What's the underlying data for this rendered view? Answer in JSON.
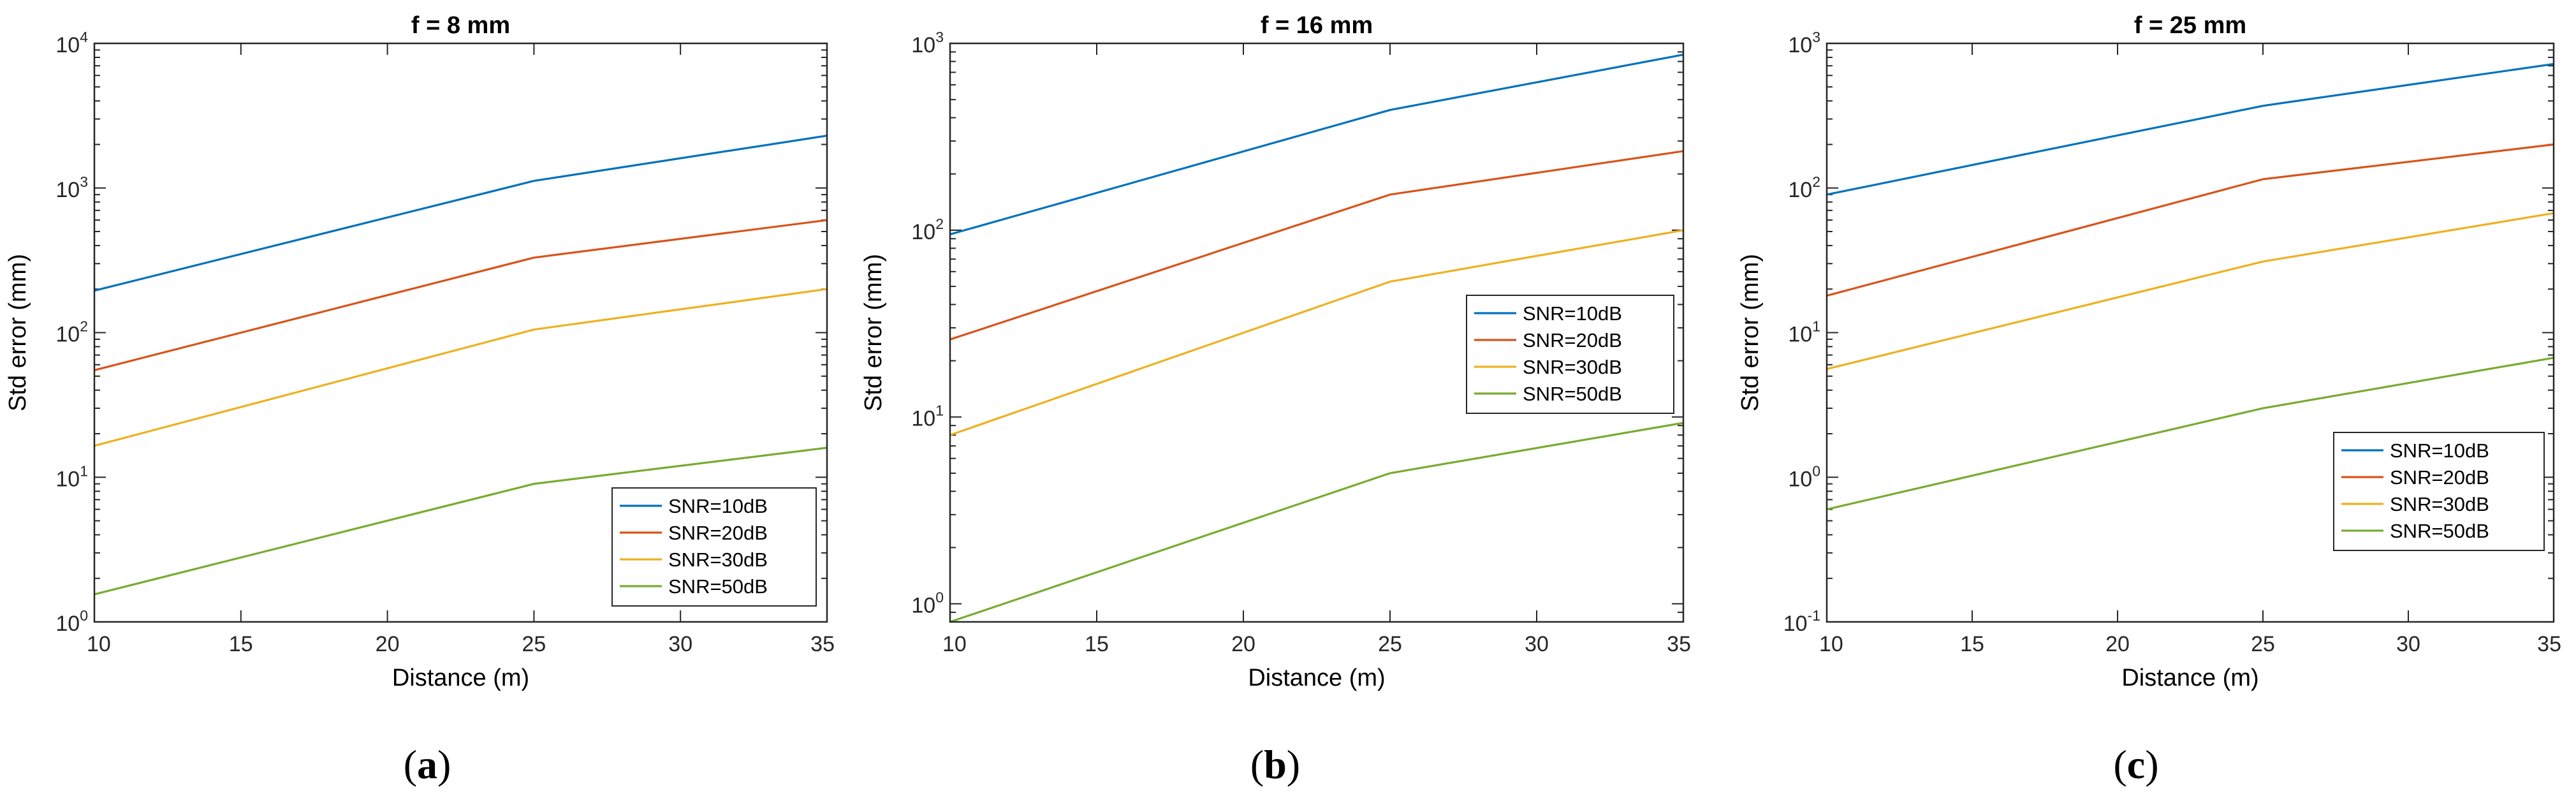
{
  "chart_data": [
    {
      "type": "line",
      "panel": "(a)",
      "panel_letter": "a",
      "title": "f = 8 mm",
      "xlabel": "Distance (m)",
      "ylabel": "Std error (mm)",
      "yscale": "log",
      "xlim": [
        10,
        35
      ],
      "ylim": [
        1,
        10000
      ],
      "xticks": [
        10,
        15,
        20,
        25,
        30,
        35
      ],
      "ytick_exponents": [
        0,
        1,
        2,
        3,
        4
      ],
      "legend_position": "bottom-right",
      "x": [
        10,
        25,
        35
      ],
      "series": [
        {
          "name": "SNR=10dB",
          "color": "#0072BD",
          "values": [
            195,
            1120,
            2300
          ]
        },
        {
          "name": "SNR=20dB",
          "color": "#D95319",
          "values": [
            55,
            330,
            600
          ]
        },
        {
          "name": "SNR=30dB",
          "color": "#EDB120",
          "values": [
            16.5,
            105,
            200
          ]
        },
        {
          "name": "SNR=50dB",
          "color": "#77AC30",
          "values": [
            1.55,
            9,
            16
          ]
        }
      ]
    },
    {
      "type": "line",
      "panel": "(b)",
      "panel_letter": "b",
      "title": "f = 16 mm",
      "xlabel": "Distance (m)",
      "ylabel": "Std error (mm)",
      "yscale": "log",
      "xlim": [
        10,
        35
      ],
      "ylim": [
        0.8,
        1000
      ],
      "xticks": [
        10,
        15,
        20,
        25,
        30,
        35
      ],
      "ytick_exponents": [
        0,
        1,
        2,
        3
      ],
      "legend_position": "middle-right",
      "x": [
        10,
        25,
        35
      ],
      "series": [
        {
          "name": "SNR=10dB",
          "color": "#0072BD",
          "values": [
            95,
            440,
            870
          ]
        },
        {
          "name": "SNR=20dB",
          "color": "#D95319",
          "values": [
            26,
            155,
            265
          ]
        },
        {
          "name": "SNR=30dB",
          "color": "#EDB120",
          "values": [
            8,
            53,
            100
          ]
        },
        {
          "name": "SNR=50dB",
          "color": "#77AC30",
          "values": [
            0.8,
            5,
            9.3
          ]
        }
      ]
    },
    {
      "type": "line",
      "panel": "(c)",
      "panel_letter": "c",
      "title": "f = 25 mm",
      "xlabel": "Distance (m)",
      "ylabel": "Std error (mm)",
      "yscale": "log",
      "xlim": [
        10,
        35
      ],
      "ylim": [
        0.1,
        1000
      ],
      "xticks": [
        10,
        15,
        20,
        25,
        30,
        35
      ],
      "ytick_exponents": [
        -1,
        0,
        1,
        2,
        3
      ],
      "legend_position": "bottom-right",
      "x": [
        10,
        25,
        35
      ],
      "series": [
        {
          "name": "SNR=10dB",
          "color": "#0072BD",
          "values": [
            90,
            370,
            720
          ]
        },
        {
          "name": "SNR=20dB",
          "color": "#D95319",
          "values": [
            18,
            115,
            200
          ]
        },
        {
          "name": "SNR=30dB",
          "color": "#EDB120",
          "values": [
            5.6,
            31,
            67
          ]
        },
        {
          "name": "SNR=50dB",
          "color": "#77AC30",
          "values": [
            0.6,
            3,
            6.7
          ]
        }
      ]
    }
  ]
}
